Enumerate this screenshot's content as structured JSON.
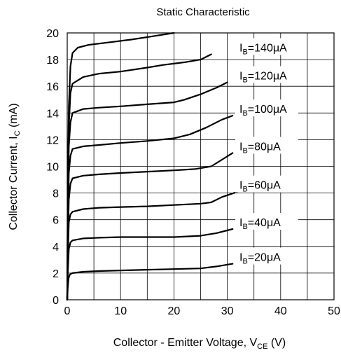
{
  "chart_data": {
    "type": "line",
    "title": "Static Characteristic",
    "xlabel": {
      "main": "Collector - Emitter Voltage, V",
      "sub": "CE",
      "unit": " (V)"
    },
    "ylabel": {
      "main": "Collector Current, I",
      "sub": "C",
      "unit": " (mA)"
    },
    "xlim": [
      0,
      50
    ],
    "ylim": [
      0,
      20
    ],
    "xticks": [
      0,
      10,
      20,
      30,
      40,
      50
    ],
    "yticks": [
      0,
      2,
      4,
      6,
      8,
      10,
      12,
      14,
      16,
      18,
      20
    ],
    "grid": true,
    "line_color": "#000000",
    "series": [
      {
        "label": {
          "pre": "I",
          "sub": "B",
          "post": "=20μA"
        },
        "points": [
          [
            0,
            0
          ],
          [
            0.1,
            0.9
          ],
          [
            0.25,
            1.6
          ],
          [
            0.5,
            1.9
          ],
          [
            1,
            2.0
          ],
          [
            3,
            2.1
          ],
          [
            6,
            2.15
          ],
          [
            10,
            2.2
          ],
          [
            15,
            2.25
          ],
          [
            20,
            2.3
          ],
          [
            25,
            2.35
          ],
          [
            28,
            2.5
          ],
          [
            31,
            2.7
          ]
        ]
      },
      {
        "label": {
          "pre": "I",
          "sub": "B",
          "post": "=40μA"
        },
        "points": [
          [
            0,
            0
          ],
          [
            0.1,
            2.0
          ],
          [
            0.3,
            3.8
          ],
          [
            0.6,
            4.3
          ],
          [
            1,
            4.45
          ],
          [
            3,
            4.6
          ],
          [
            6,
            4.65
          ],
          [
            10,
            4.7
          ],
          [
            15,
            4.7
          ],
          [
            20,
            4.7
          ],
          [
            25,
            4.8
          ],
          [
            28,
            5.0
          ],
          [
            31,
            5.3
          ]
        ]
      },
      {
        "label": {
          "pre": "I",
          "sub": "B",
          "post": "=60μA"
        },
        "points": [
          [
            0,
            0
          ],
          [
            0.1,
            3.0
          ],
          [
            0.3,
            5.8
          ],
          [
            0.6,
            6.4
          ],
          [
            1,
            6.6
          ],
          [
            3,
            6.8
          ],
          [
            6,
            6.9
          ],
          [
            10,
            6.95
          ],
          [
            15,
            7.0
          ],
          [
            20,
            7.1
          ],
          [
            25,
            7.2
          ],
          [
            27,
            7.3
          ],
          [
            29,
            7.7
          ],
          [
            32,
            8.1
          ]
        ]
      },
      {
        "label": {
          "pre": "I",
          "sub": "B",
          "post": "=80μA"
        },
        "points": [
          [
            0,
            0
          ],
          [
            0.1,
            4.0
          ],
          [
            0.3,
            7.5
          ],
          [
            0.6,
            8.7
          ],
          [
            1,
            9.1
          ],
          [
            3,
            9.3
          ],
          [
            6,
            9.4
          ],
          [
            10,
            9.5
          ],
          [
            15,
            9.6
          ],
          [
            20,
            9.7
          ],
          [
            24,
            9.8
          ],
          [
            27,
            10.0
          ],
          [
            29,
            10.5
          ],
          [
            31,
            11.0
          ]
        ]
      },
      {
        "label": {
          "pre": "I",
          "sub": "B",
          "post": "=100μA"
        },
        "points": [
          [
            0,
            0
          ],
          [
            0.1,
            5.0
          ],
          [
            0.3,
            9.5
          ],
          [
            0.6,
            10.8
          ],
          [
            1,
            11.3
          ],
          [
            3,
            11.5
          ],
          [
            6,
            11.6
          ],
          [
            10,
            11.75
          ],
          [
            15,
            11.9
          ],
          [
            20,
            12.1
          ],
          [
            23,
            12.4
          ],
          [
            26,
            12.9
          ],
          [
            29,
            13.5
          ],
          [
            31,
            13.8
          ]
        ]
      },
      {
        "label": {
          "pre": "I",
          "sub": "B",
          "post": "=120μA"
        },
        "points": [
          [
            0,
            0
          ],
          [
            0.1,
            6.0
          ],
          [
            0.3,
            11.5
          ],
          [
            0.6,
            13.3
          ],
          [
            1,
            14.0
          ],
          [
            3,
            14.3
          ],
          [
            6,
            14.4
          ],
          [
            10,
            14.5
          ],
          [
            15,
            14.65
          ],
          [
            20,
            14.8
          ],
          [
            22,
            15.0
          ],
          [
            25,
            15.4
          ],
          [
            28,
            15.9
          ],
          [
            30,
            16.3
          ]
        ]
      },
      {
        "label": {
          "pre": "I",
          "sub": "B",
          "post": "=140μA"
        },
        "points": [
          [
            0,
            0
          ],
          [
            0.1,
            7.0
          ],
          [
            0.3,
            13.0
          ],
          [
            0.6,
            15.5
          ],
          [
            1,
            16.2
          ],
          [
            3,
            16.7
          ],
          [
            6,
            16.95
          ],
          [
            10,
            17.1
          ],
          [
            15,
            17.4
          ],
          [
            18,
            17.6
          ],
          [
            22,
            17.8
          ],
          [
            25,
            18.0
          ],
          [
            27,
            18.4
          ]
        ]
      },
      {
        "label": null,
        "points": [
          [
            0,
            0
          ],
          [
            0.1,
            8.0
          ],
          [
            0.3,
            14.5
          ],
          [
            0.6,
            17.5
          ],
          [
            1,
            18.5
          ],
          [
            2,
            18.9
          ],
          [
            4,
            19.1
          ],
          [
            8,
            19.3
          ],
          [
            12,
            19.5
          ],
          [
            16,
            19.75
          ],
          [
            20,
            20.0
          ]
        ]
      }
    ]
  }
}
